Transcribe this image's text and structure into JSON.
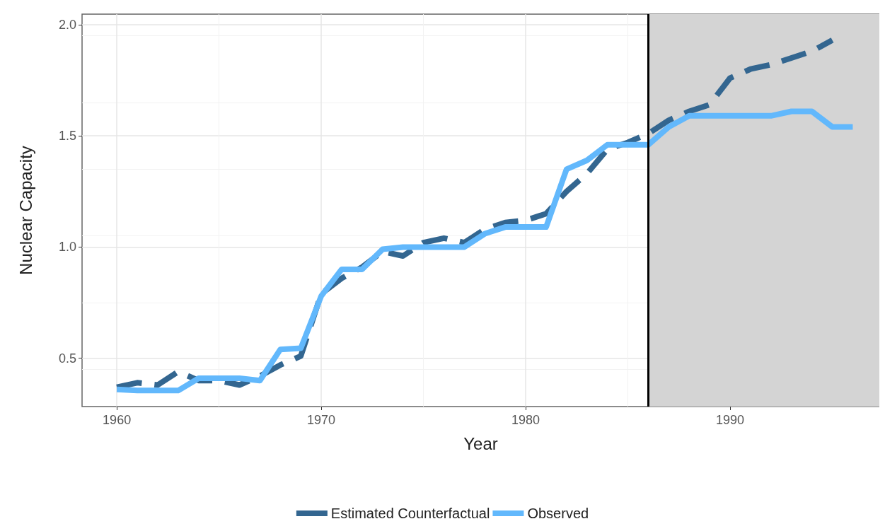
{
  "chart_data": {
    "type": "line",
    "xlabel": "Year",
    "ylabel": "Nuclear Capacity",
    "x": [
      1960,
      1961,
      1962,
      1963,
      1964,
      1965,
      1966,
      1967,
      1968,
      1969,
      1970,
      1971,
      1972,
      1973,
      1974,
      1975,
      1976,
      1977,
      1978,
      1979,
      1980,
      1981,
      1982,
      1983,
      1984,
      1985,
      1986,
      1987,
      1988,
      1989,
      1990,
      1991,
      1992,
      1993,
      1994,
      1995,
      1996
    ],
    "series": [
      {
        "name": "Estimated Counterfactual",
        "color": "#336690",
        "line_style": "dashed",
        "values": [
          0.37,
          0.39,
          0.38,
          0.44,
          0.4,
          0.4,
          0.38,
          0.42,
          0.47,
          0.51,
          0.79,
          0.86,
          0.91,
          0.98,
          0.96,
          1.02,
          1.04,
          1.02,
          1.08,
          1.11,
          1.12,
          1.15,
          1.25,
          1.33,
          1.44,
          1.47,
          1.51,
          1.57,
          1.61,
          1.64,
          1.76,
          1.8,
          1.82,
          1.85,
          1.88,
          1.93,
          null
        ]
      },
      {
        "name": "Observed",
        "color": "#62b8fc",
        "line_style": "solid",
        "values": [
          0.36,
          0.355,
          0.355,
          0.355,
          0.41,
          0.41,
          0.41,
          0.4,
          0.54,
          0.545,
          0.78,
          0.9,
          0.9,
          0.99,
          1.0,
          1.0,
          1.0,
          1.0,
          1.06,
          1.09,
          1.09,
          1.09,
          1.35,
          1.39,
          1.46,
          1.46,
          1.46,
          1.54,
          1.59,
          1.59,
          1.59,
          1.59,
          1.59,
          1.61,
          1.61,
          1.54,
          1.54
        ]
      }
    ],
    "xlim": [
      1958.3,
      1997.3
    ],
    "xticks": [
      1960,
      1970,
      1980,
      1990
    ],
    "ylim": [
      0.283,
      2.047
    ],
    "yticks": [
      0.5,
      {
        "value": 1,
        "label": "1.0"
      },
      1.5,
      {
        "value": 2,
        "label": "2.0"
      }
    ],
    "ref_lines": [
      {
        "axis": "x",
        "value": 1986,
        "color": "#000000"
      }
    ],
    "bands": [
      {
        "axis": "x",
        "from": 1986,
        "to": 1997.3,
        "color": "#d4d4d4"
      }
    ],
    "grid": true,
    "legend": "bottom",
    "marker": "none"
  }
}
